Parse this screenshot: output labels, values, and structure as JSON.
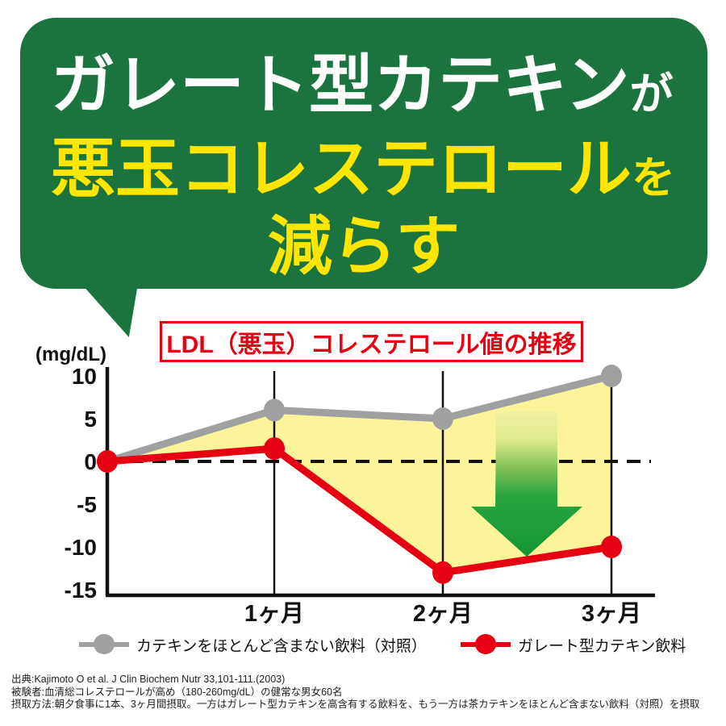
{
  "header": {
    "line1_main": "ガレート型カテキン",
    "line1_particle": "が",
    "line2_main": "悪玉コレステロール",
    "line2_particle": "を",
    "line3": "減らす",
    "bg_color": "#1b7340",
    "text_white": "#ffffff",
    "text_yellow": "#ffe600"
  },
  "chart": {
    "title": "LDL（悪玉）コレステロール値の推移",
    "unit_label": "(mg/dL)"
  },
  "chart_data": {
    "type": "line",
    "title": "LDL（悪玉）コレステロール値の推移",
    "ylabel": "(mg/dL)",
    "categories": [
      "",
      "1ヶ月",
      "2ヶ月",
      "3ヶ月"
    ],
    "series": [
      {
        "name": "カテキンをほとんど含まない飲料（対照）",
        "color": "#9fa0a0",
        "values": [
          0,
          6,
          5,
          10
        ]
      },
      {
        "name": "ガレート型カテキン飲料",
        "color": "#e50012",
        "values": [
          0,
          1.5,
          -13,
          -10
        ]
      }
    ],
    "y_ticks": [
      10,
      5,
      0,
      -5,
      -10,
      -15
    ],
    "ylim": [
      -15,
      11
    ],
    "zero_baseline_dashed": true,
    "fill_between_color": "#fbf49b",
    "annotation": "green-down-arrow",
    "arrow_color": "#1fa03a",
    "grid": "vertical-month-lines"
  },
  "legend": {
    "items": [
      {
        "label": "カテキンをほとんど含まない飲料（対照）",
        "color": "#9fa0a0"
      },
      {
        "label": "ガレート型カテキン飲料",
        "color": "#e50012"
      }
    ]
  },
  "footer": {
    "lines": [
      "出典:Kajimoto O et al. J Clin Biochem Nutr 33,101-111.(2003)",
      "被験者:血清総コレステロールが高め（180-260mg/dL）の健常な男女60名",
      "摂取方法:朝夕食事に1本、3ヶ月間摂取。一方はガレート型カテキンを高含有する飲料を、もう一方は茶カテキンをほとんど含まない飲料（対照）を摂取"
    ]
  }
}
